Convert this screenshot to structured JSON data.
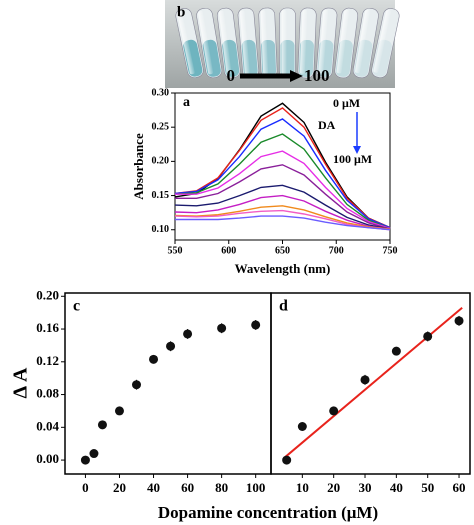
{
  "photo": {
    "label": "b",
    "from": "0",
    "to": "100"
  },
  "chart_data": [
    {
      "type": "line",
      "label": "a",
      "xlabel": "Wavelength (nm)",
      "ylabel": "Absorbance",
      "x": [
        550,
        570,
        590,
        610,
        630,
        650,
        670,
        690,
        710,
        730,
        750
      ],
      "xlim": [
        550,
        750
      ],
      "ylim": [
        0.085,
        0.3
      ],
      "xticks": [
        550,
        600,
        650,
        700,
        750
      ],
      "yticks": [
        {
          "value": 0.1,
          "label": "0.10"
        },
        {
          "value": 0.15,
          "label": "0.15"
        },
        {
          "value": 0.2,
          "label": "0.20"
        },
        {
          "value": 0.25,
          "label": "0.25"
        },
        {
          "value": 0.3,
          "label": "0.30"
        }
      ],
      "series": [
        {
          "color": "#000000",
          "values": [
            0.148,
            0.153,
            0.175,
            0.217,
            0.266,
            0.285,
            0.257,
            0.199,
            0.148,
            0.117,
            0.103
          ]
        },
        {
          "color": "#e8231c",
          "values": [
            0.153,
            0.157,
            0.176,
            0.216,
            0.26,
            0.278,
            0.25,
            0.196,
            0.146,
            0.117,
            0.103
          ]
        },
        {
          "color": "#1a2cff",
          "values": [
            0.153,
            0.156,
            0.173,
            0.207,
            0.247,
            0.262,
            0.237,
            0.187,
            0.143,
            0.116,
            0.103
          ]
        },
        {
          "color": "#1a8a2a",
          "values": [
            0.152,
            0.154,
            0.167,
            0.196,
            0.228,
            0.24,
            0.218,
            0.176,
            0.137,
            0.114,
            0.102
          ]
        },
        {
          "color": "#e62ee6",
          "values": [
            0.152,
            0.152,
            0.161,
            0.182,
            0.207,
            0.215,
            0.197,
            0.162,
            0.131,
            0.112,
            0.102
          ]
        },
        {
          "color": "#8a1f9a",
          "values": [
            0.146,
            0.146,
            0.153,
            0.17,
            0.189,
            0.195,
            0.18,
            0.152,
            0.126,
            0.11,
            0.101
          ]
        },
        {
          "color": "#1a1a6e",
          "values": [
            0.136,
            0.135,
            0.139,
            0.15,
            0.162,
            0.165,
            0.155,
            0.136,
            0.118,
            0.107,
            0.101
          ]
        },
        {
          "color": "#c41ec4",
          "values": [
            0.126,
            0.125,
            0.129,
            0.137,
            0.147,
            0.15,
            0.142,
            0.127,
            0.114,
            0.105,
            0.101
          ]
        },
        {
          "color": "#f08a1c",
          "values": [
            0.121,
            0.12,
            0.122,
            0.127,
            0.133,
            0.135,
            0.129,
            0.119,
            0.11,
            0.104,
            0.101
          ]
        },
        {
          "color": "#f25cc4",
          "values": [
            0.12,
            0.119,
            0.12,
            0.124,
            0.127,
            0.128,
            0.123,
            0.116,
            0.108,
            0.103,
            0.1
          ]
        },
        {
          "color": "#6a5cff",
          "values": [
            0.115,
            0.115,
            0.115,
            0.117,
            0.12,
            0.12,
            0.117,
            0.111,
            0.106,
            0.103,
            0.1
          ]
        }
      ],
      "annotations": [
        "0 μM",
        "DA",
        "100 μM"
      ],
      "arrow_color": "#1a3cff"
    },
    {
      "type": "scatter",
      "label": "c",
      "ylabel": "Δ A",
      "xlabel": "Dopamine concentration (μM)",
      "xlim": [
        -12,
        109
      ],
      "ylim": [
        -0.017,
        0.204
      ],
      "xticks": [
        0,
        20,
        40,
        60,
        80,
        100
      ],
      "yticks": [
        {
          "value": 0,
          "label": "0.00"
        },
        {
          "value": 0.04,
          "label": "0.04"
        },
        {
          "value": 0.08,
          "label": "0.08"
        },
        {
          "value": 0.12,
          "label": "0.12"
        },
        {
          "value": 0.16,
          "label": "0.16"
        },
        {
          "value": 0.2,
          "label": "0.20"
        }
      ],
      "series": [
        {
          "color": "#111111",
          "x": [
            0,
            5,
            10,
            20,
            30,
            40,
            50,
            60,
            80,
            100
          ],
          "values": [
            0.0,
            0.008,
            0.043,
            0.06,
            0.092,
            0.123,
            0.139,
            0.154,
            0.161,
            0.165
          ],
          "errors": [
            0.002,
            0.003,
            0.005,
            0.004,
            0.006,
            0.005,
            0.006,
            0.006,
            0.006,
            0.006
          ]
        }
      ]
    },
    {
      "type": "scatter",
      "label": "d",
      "xlim": [
        0,
        63.5
      ],
      "ylim": [
        -0.017,
        0.204
      ],
      "xticks": [
        10,
        20,
        30,
        40,
        50,
        60
      ],
      "series": [
        {
          "color": "#111111",
          "x": [
            5,
            10,
            20,
            30,
            40,
            50,
            60
          ],
          "values": [
            0.0,
            0.041,
            0.06,
            0.098,
            0.133,
            0.151,
            0.17
          ],
          "errors": [
            0.002,
            0.005,
            0.004,
            0.006,
            0.005,
            0.006,
            0.006
          ]
        }
      ],
      "fit": {
        "color": "#e8231c",
        "x": [
          4,
          61
        ],
        "values": [
          0.002,
          0.186
        ]
      }
    }
  ]
}
